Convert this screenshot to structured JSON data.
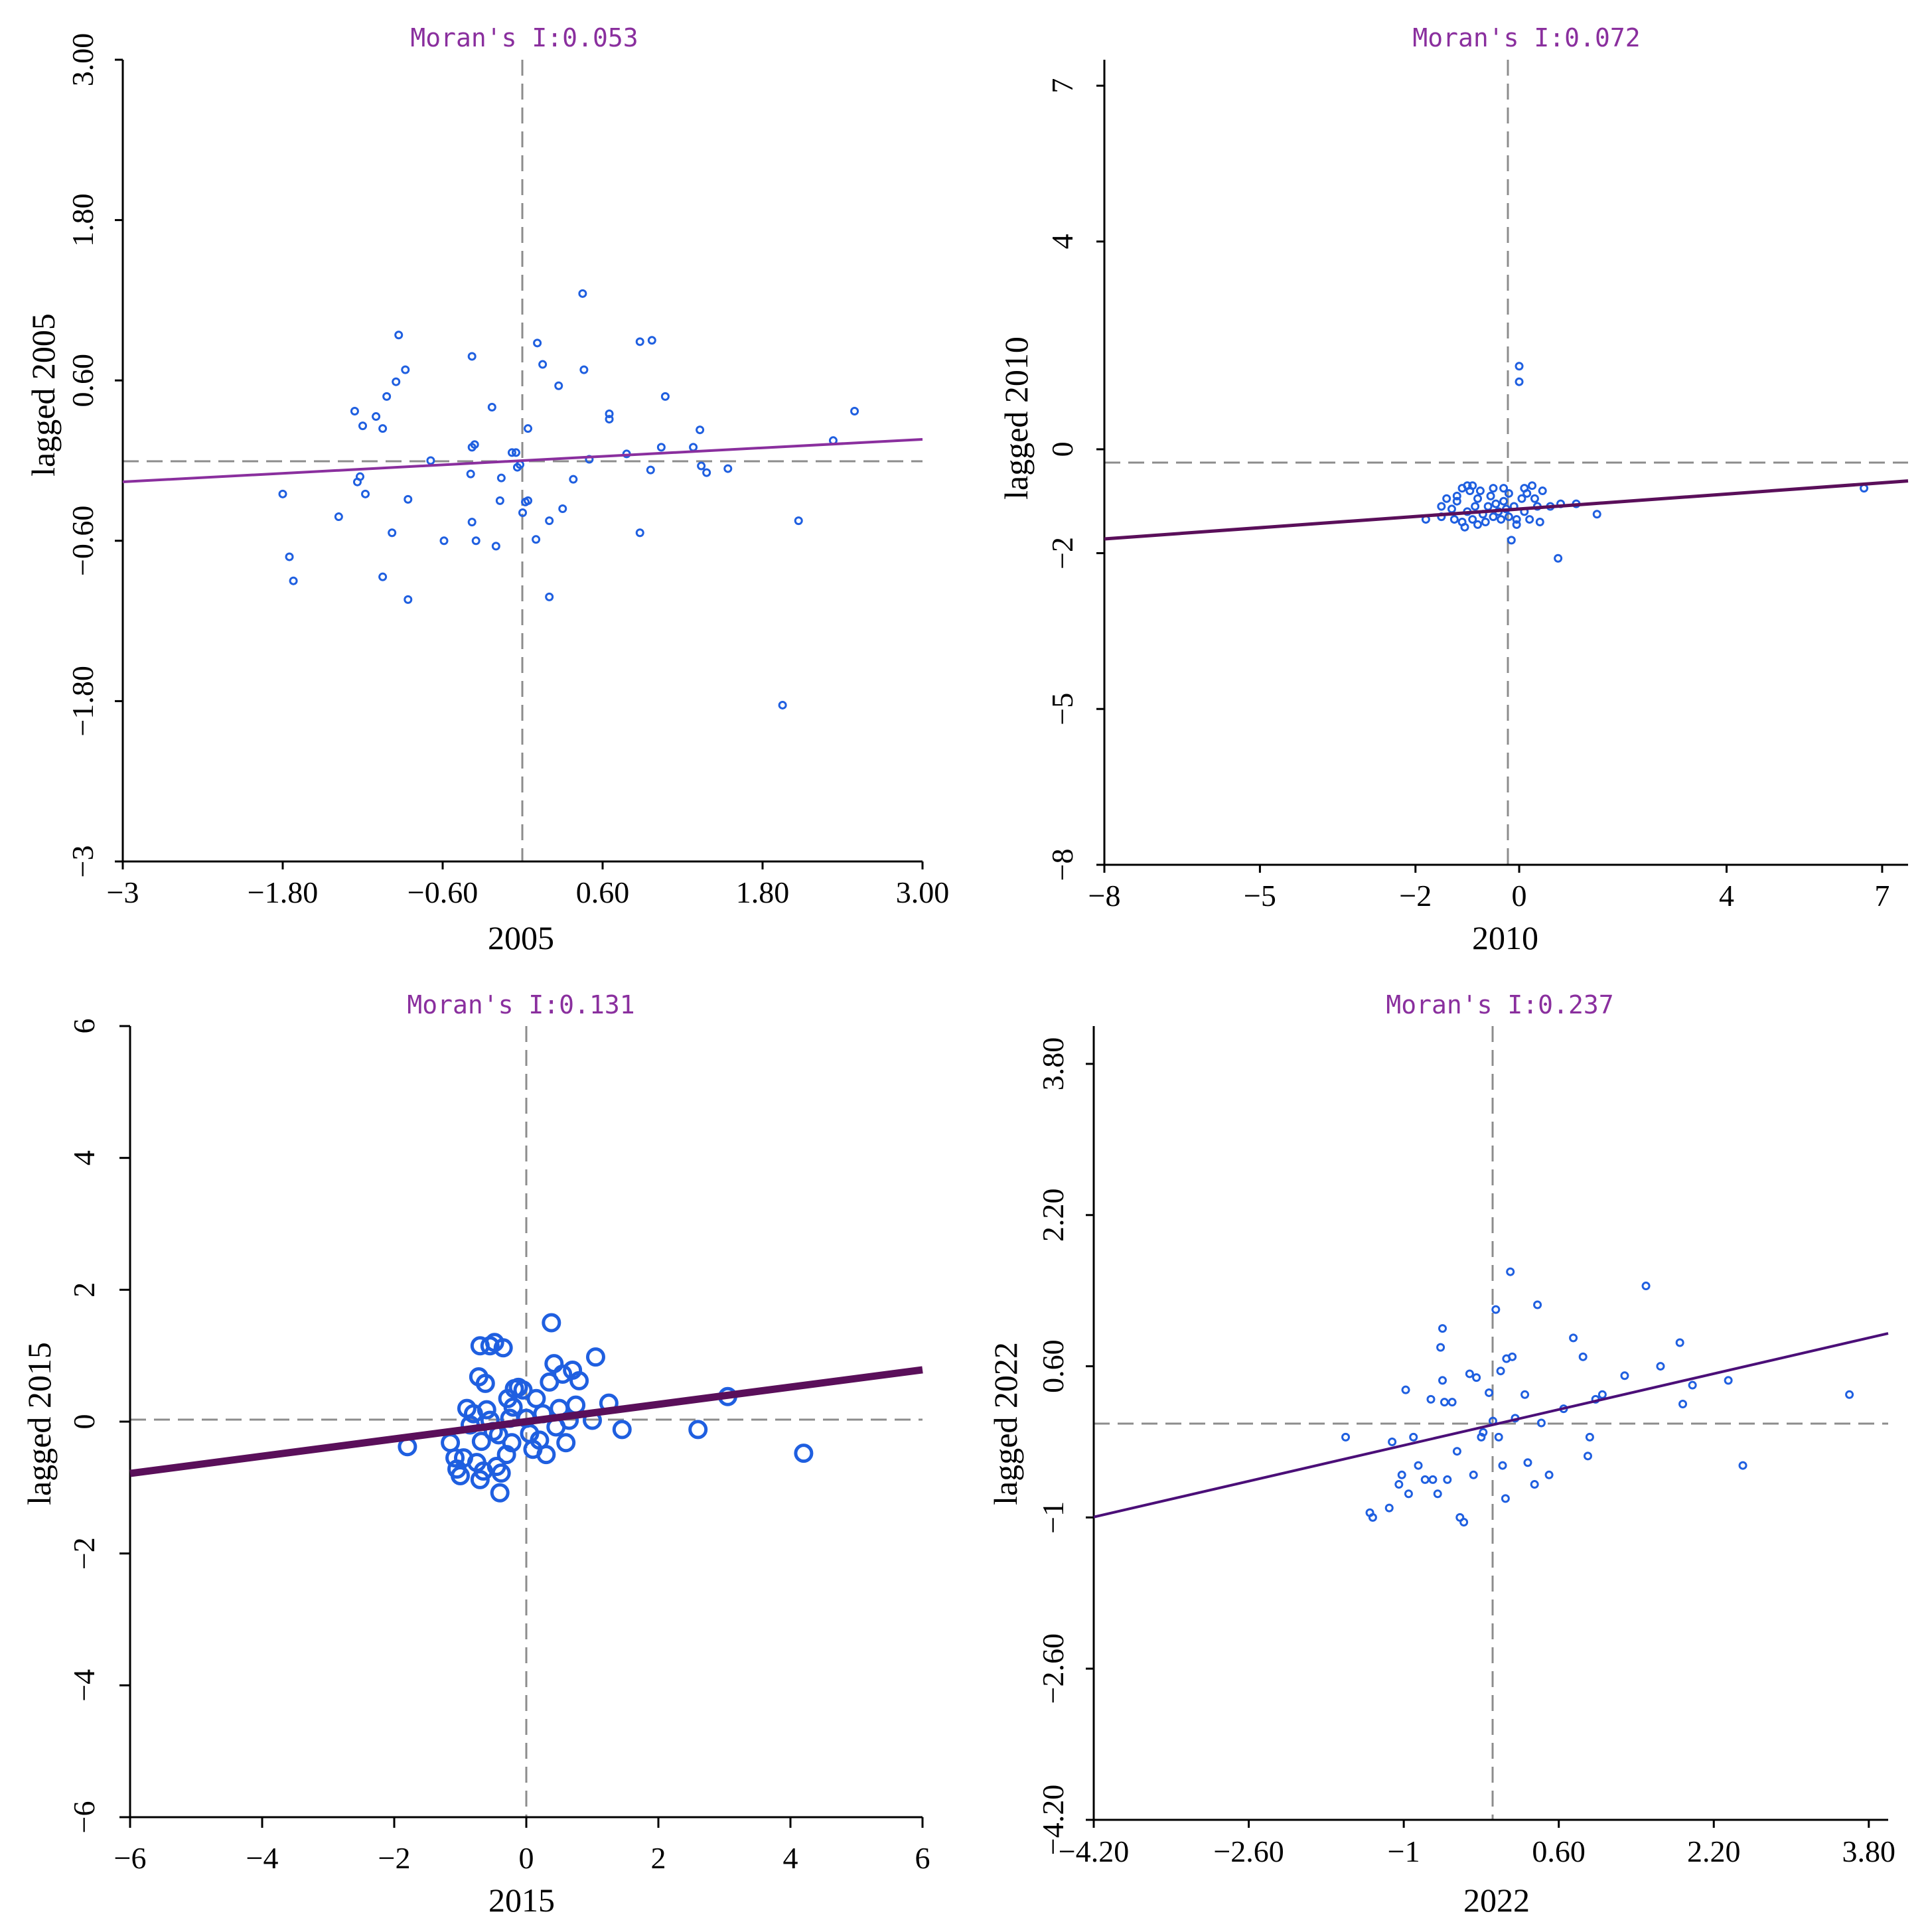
{
  "chart_data": [
    {
      "type": "scatter",
      "title": "Moran's I:0.053",
      "xlabel": "2005",
      "ylabel": "lagged 2005",
      "xlim": [
        -3,
        3
      ],
      "ylim": [
        -3,
        3
      ],
      "xticks": [
        -3,
        -1.8,
        -0.6,
        0.6,
        1.8,
        3
      ],
      "xtick_labels": [
        "−3",
        "−1.80",
        "−0.60",
        "0.60",
        "1.80",
        "3.00"
      ],
      "yticks": [
        -3,
        -1.8,
        -0.6,
        0.6,
        1.8,
        3
      ],
      "ytick_labels": [
        "−3",
        "−1.80",
        "−0.60",
        "0.60",
        "1.80",
        "3.00"
      ],
      "regression": {
        "slope": 0.053,
        "intercept": 0.0
      },
      "colors": {
        "points": "#1f5fe0",
        "line": "#8a2f9e"
      },
      "points": [
        [
          -1.8,
          -0.25
        ],
        [
          -1.75,
          -0.72
        ],
        [
          -1.72,
          -0.9
        ],
        [
          -1.38,
          -0.42
        ],
        [
          -1.24,
          -0.16
        ],
        [
          -1.22,
          -0.12
        ],
        [
          -1.26,
          0.37
        ],
        [
          -1.18,
          -0.25
        ],
        [
          -1.2,
          0.26
        ],
        [
          -1.1,
          0.33
        ],
        [
          -1.05,
          -0.87
        ],
        [
          -1.05,
          0.24
        ],
        [
          -1.02,
          0.48
        ],
        [
          -0.98,
          -0.54
        ],
        [
          -0.95,
          0.59
        ],
        [
          -0.93,
          0.94
        ],
        [
          -0.88,
          0.68
        ],
        [
          -0.86,
          -0.29
        ],
        [
          -0.86,
          -1.04
        ],
        [
          -0.69,
          0.0
        ],
        [
          -0.59,
          -0.6
        ],
        [
          -0.38,
          0.78
        ],
        [
          -0.38,
          -0.46
        ],
        [
          -0.39,
          -0.1
        ],
        [
          -0.36,
          0.12
        ],
        [
          -0.38,
          0.1
        ],
        [
          -0.35,
          -0.6
        ],
        [
          -0.23,
          0.4
        ],
        [
          -0.2,
          -0.64
        ],
        [
          -0.16,
          -0.13
        ],
        [
          -0.17,
          -0.3
        ],
        [
          -0.08,
          0.06
        ],
        [
          -0.05,
          0.06
        ],
        [
          -0.04,
          -0.05
        ],
        [
          -0.02,
          -0.03
        ],
        [
          0.0,
          -0.39
        ],
        [
          0.02,
          -0.31
        ],
        [
          0.04,
          0.24
        ],
        [
          0.04,
          -0.3
        ],
        [
          0.1,
          -0.59
        ],
        [
          0.11,
          0.88
        ],
        [
          0.15,
          0.72
        ],
        [
          0.2,
          -0.45
        ],
        [
          0.2,
          -1.02
        ],
        [
          0.27,
          0.56
        ],
        [
          0.3,
          -0.36
        ],
        [
          0.38,
          -0.14
        ],
        [
          0.45,
          1.25
        ],
        [
          0.46,
          0.68
        ],
        [
          0.5,
          0.01
        ],
        [
          0.65,
          0.35
        ],
        [
          0.65,
          0.31
        ],
        [
          0.78,
          0.05
        ],
        [
          0.88,
          -0.54
        ],
        [
          0.88,
          0.89
        ],
        [
          0.96,
          -0.07
        ],
        [
          0.97,
          0.9
        ],
        [
          1.04,
          0.1
        ],
        [
          1.07,
          0.48
        ],
        [
          1.28,
          0.1
        ],
        [
          1.33,
          0.23
        ],
        [
          1.34,
          -0.04
        ],
        [
          1.38,
          -0.09
        ],
        [
          1.54,
          -0.06
        ],
        [
          1.95,
          -1.83
        ],
        [
          2.07,
          -0.45
        ],
        [
          2.33,
          0.15
        ],
        [
          2.49,
          0.37
        ]
      ]
    },
    {
      "type": "scatter",
      "title": "Moran's I:0.072",
      "xlabel": "2010",
      "ylabel": "lagged 2010",
      "xlim": [
        -8,
        7.5
      ],
      "ylim": [
        -8,
        7.5
      ],
      "xticks": [
        -8,
        -5,
        -2,
        0,
        4,
        7
      ],
      "xtick_labels": [
        "−8",
        "−5",
        "−2",
        "0",
        "4",
        "7"
      ],
      "yticks": [
        -8,
        -5,
        -2,
        0,
        4,
        7
      ],
      "ytick_labels": [
        "−8",
        "−5",
        "−2",
        "0",
        "4",
        "7"
      ],
      "regression": {
        "slope": 0.072,
        "intercept": -1.15
      },
      "colors": {
        "points": "#1f5fe0",
        "line": "#5a0f5a"
      },
      "points": [
        [
          -1.8,
          -1.35
        ],
        [
          -1.5,
          -1.1
        ],
        [
          -1.5,
          -1.3
        ],
        [
          -1.4,
          -0.95
        ],
        [
          -1.3,
          -1.15
        ],
        [
          -1.25,
          -1.35
        ],
        [
          -1.2,
          -1.0
        ],
        [
          -1.2,
          -0.9
        ],
        [
          -1.1,
          -0.75
        ],
        [
          -1.1,
          -1.4
        ],
        [
          -1.05,
          -1.5
        ],
        [
          -1.0,
          -0.7
        ],
        [
          -1.0,
          -1.2
        ],
        [
          -0.95,
          -0.8
        ],
        [
          -0.9,
          -1.35
        ],
        [
          -0.9,
          -0.7
        ],
        [
          -0.85,
          -1.1
        ],
        [
          -0.8,
          -0.95
        ],
        [
          -0.8,
          -1.45
        ],
        [
          -0.75,
          -0.8
        ],
        [
          -0.7,
          -1.25
        ],
        [
          -0.65,
          -1.4
        ],
        [
          -0.6,
          -1.1
        ],
        [
          -0.55,
          -0.9
        ],
        [
          -0.5,
          -1.3
        ],
        [
          -0.5,
          -0.75
        ],
        [
          -0.45,
          -1.05
        ],
        [
          -0.4,
          -1.2
        ],
        [
          -0.35,
          -1.35
        ],
        [
          -0.3,
          -0.75
        ],
        [
          -0.3,
          -1.0
        ],
        [
          -0.25,
          -1.15
        ],
        [
          -0.2,
          -0.85
        ],
        [
          -0.2,
          -1.3
        ],
        [
          -0.15,
          -1.75
        ],
        [
          -0.1,
          -1.1
        ],
        [
          -0.05,
          -1.45
        ],
        [
          -0.05,
          -1.35
        ],
        [
          0.0,
          1.6
        ],
        [
          0.0,
          1.3
        ],
        [
          0.05,
          -0.95
        ],
        [
          0.1,
          -0.75
        ],
        [
          0.1,
          -1.2
        ],
        [
          0.15,
          -0.85
        ],
        [
          0.2,
          -1.35
        ],
        [
          0.25,
          -0.7
        ],
        [
          0.3,
          -0.95
        ],
        [
          0.35,
          -1.1
        ],
        [
          0.4,
          -1.4
        ],
        [
          0.45,
          -0.8
        ],
        [
          0.6,
          -1.1
        ],
        [
          0.75,
          -2.1
        ],
        [
          0.8,
          -1.05
        ],
        [
          1.1,
          -1.05
        ],
        [
          1.5,
          -1.25
        ],
        [
          6.65,
          -0.75
        ]
      ]
    },
    {
      "type": "scatter",
      "title": "Moran's I:0.131",
      "xlabel": "2015",
      "ylabel": "lagged 2015",
      "xlim": [
        -6,
        6
      ],
      "ylim": [
        -6,
        6
      ],
      "xticks": [
        -6,
        -4,
        -2,
        0,
        2,
        4,
        6
      ],
      "xtick_labels": [
        "−6",
        "−4",
        "−2",
        "0",
        "2",
        "4",
        "6"
      ],
      "yticks": [
        -6,
        -4,
        -2,
        0,
        2,
        4,
        6
      ],
      "ytick_labels": [
        "−6",
        "−4",
        "−2",
        "0",
        "2",
        "4",
        "6"
      ],
      "regression": {
        "slope": 0.131,
        "intercept": 0.0
      },
      "colors": {
        "points": "#1f5fe0",
        "line": "#5a0f5a"
      },
      "points": [
        [
          -1.8,
          -0.38
        ],
        [
          -1.15,
          -0.32
        ],
        [
          -1.08,
          -0.55
        ],
        [
          -1.05,
          -0.72
        ],
        [
          -1.0,
          -0.82
        ],
        [
          -0.95,
          -0.55
        ],
        [
          -0.9,
          0.2
        ],
        [
          -0.85,
          -0.05
        ],
        [
          -0.8,
          0.12
        ],
        [
          -0.75,
          -0.62
        ],
        [
          -0.72,
          0.68
        ],
        [
          -0.7,
          1.15
        ],
        [
          -0.7,
          -0.88
        ],
        [
          -0.68,
          -0.3
        ],
        [
          -0.65,
          -0.75
        ],
        [
          -0.62,
          0.58
        ],
        [
          -0.6,
          0.18
        ],
        [
          -0.55,
          1.15
        ],
        [
          -0.55,
          0.02
        ],
        [
          -0.5,
          -0.15
        ],
        [
          -0.48,
          1.2
        ],
        [
          -0.45,
          -0.68
        ],
        [
          -0.42,
          -0.2
        ],
        [
          -0.4,
          -1.08
        ],
        [
          -0.38,
          -0.78
        ],
        [
          -0.35,
          1.12
        ],
        [
          -0.3,
          -0.5
        ],
        [
          -0.28,
          0.35
        ],
        [
          -0.25,
          0.05
        ],
        [
          -0.22,
          -0.32
        ],
        [
          -0.2,
          0.22
        ],
        [
          -0.18,
          0.5
        ],
        [
          -0.12,
          0.52
        ],
        [
          -0.05,
          0.48
        ],
        [
          0.0,
          0.05
        ],
        [
          0.05,
          -0.18
        ],
        [
          0.1,
          -0.42
        ],
        [
          0.15,
          0.35
        ],
        [
          0.2,
          -0.28
        ],
        [
          0.25,
          0.12
        ],
        [
          0.3,
          -0.5
        ],
        [
          0.35,
          0.6
        ],
        [
          0.38,
          1.5
        ],
        [
          0.42,
          0.88
        ],
        [
          0.45,
          -0.08
        ],
        [
          0.5,
          0.2
        ],
        [
          0.55,
          0.72
        ],
        [
          0.6,
          -0.32
        ],
        [
          0.65,
          0.02
        ],
        [
          0.7,
          0.78
        ],
        [
          0.75,
          0.25
        ],
        [
          0.8,
          0.62
        ],
        [
          1.0,
          0.02
        ],
        [
          1.05,
          0.98
        ],
        [
          1.25,
          0.28
        ],
        [
          1.45,
          -0.12
        ],
        [
          2.6,
          -0.12
        ],
        [
          3.05,
          0.38
        ],
        [
          4.2,
          -0.48
        ]
      ]
    },
    {
      "type": "scatter",
      "title": "Moran's I:0.237",
      "xlabel": "2022",
      "ylabel": "lagged 2022",
      "xlim": [
        -4.2,
        4.0
      ],
      "ylim": [
        -4.2,
        4.2
      ],
      "xticks": [
        -4.2,
        -2.6,
        -1,
        0.6,
        2.2,
        3.8
      ],
      "xtick_labels": [
        "−4.20",
        "−2.60",
        "−1",
        "0.60",
        "2.20",
        "3.80"
      ],
      "yticks": [
        -4.2,
        -2.6,
        -1,
        0.6,
        2.2,
        3.8
      ],
      "ytick_labels": [
        "−4.20",
        "−2.60",
        "−1",
        "0.60",
        "2.20",
        "3.80"
      ],
      "regression": {
        "slope": 0.237,
        "intercept": 0.0
      },
      "colors": {
        "points": "#1f5fe0",
        "line": "#4b0f78"
      },
      "points": [
        [
          -1.6,
          -0.15
        ],
        [
          -1.35,
          -0.95
        ],
        [
          -1.32,
          -1.0
        ],
        [
          -1.15,
          -0.9
        ],
        [
          -1.12,
          -0.2
        ],
        [
          -1.05,
          -0.65
        ],
        [
          -1.02,
          -0.55
        ],
        [
          -0.98,
          0.35
        ],
        [
          -0.95,
          -0.75
        ],
        [
          -0.9,
          -0.15
        ],
        [
          -0.85,
          -0.45
        ],
        [
          -0.78,
          -0.6
        ],
        [
          -0.72,
          0.25
        ],
        [
          -0.7,
          -0.6
        ],
        [
          -0.65,
          -0.75
        ],
        [
          -0.62,
          0.8
        ],
        [
          -0.6,
          1.0
        ],
        [
          -0.6,
          0.45
        ],
        [
          -0.58,
          0.22
        ],
        [
          -0.55,
          -0.6
        ],
        [
          -0.5,
          0.22
        ],
        [
          -0.45,
          -0.3
        ],
        [
          -0.42,
          -1.0
        ],
        [
          -0.38,
          -1.05
        ],
        [
          -0.32,
          0.52
        ],
        [
          -0.28,
          -0.55
        ],
        [
          -0.25,
          0.48
        ],
        [
          -0.2,
          -0.15
        ],
        [
          -0.18,
          -0.1
        ],
        [
          -0.12,
          0.32
        ],
        [
          -0.08,
          0.02
        ],
        [
          -0.05,
          1.2
        ],
        [
          -0.02,
          -0.15
        ],
        [
          0.0,
          0.55
        ],
        [
          0.02,
          -0.45
        ],
        [
          0.05,
          -0.8
        ],
        [
          0.06,
          0.68
        ],
        [
          0.1,
          1.6
        ],
        [
          0.12,
          0.7
        ],
        [
          0.15,
          0.05
        ],
        [
          0.25,
          0.3
        ],
        [
          0.28,
          -0.42
        ],
        [
          0.35,
          -0.65
        ],
        [
          0.38,
          1.25
        ],
        [
          0.42,
          0.0
        ],
        [
          0.5,
          -0.55
        ],
        [
          0.65,
          0.15
        ],
        [
          0.75,
          0.9
        ],
        [
          0.85,
          0.7
        ],
        [
          0.9,
          -0.35
        ],
        [
          0.92,
          -0.15
        ],
        [
          0.98,
          0.25
        ],
        [
          1.05,
          0.3
        ],
        [
          1.28,
          0.5
        ],
        [
          1.5,
          1.45
        ],
        [
          1.65,
          0.6
        ],
        [
          1.85,
          0.85
        ],
        [
          1.88,
          0.2
        ],
        [
          1.98,
          0.4
        ],
        [
          2.35,
          0.45
        ],
        [
          2.5,
          -0.45
        ],
        [
          3.6,
          0.3
        ]
      ]
    }
  ]
}
